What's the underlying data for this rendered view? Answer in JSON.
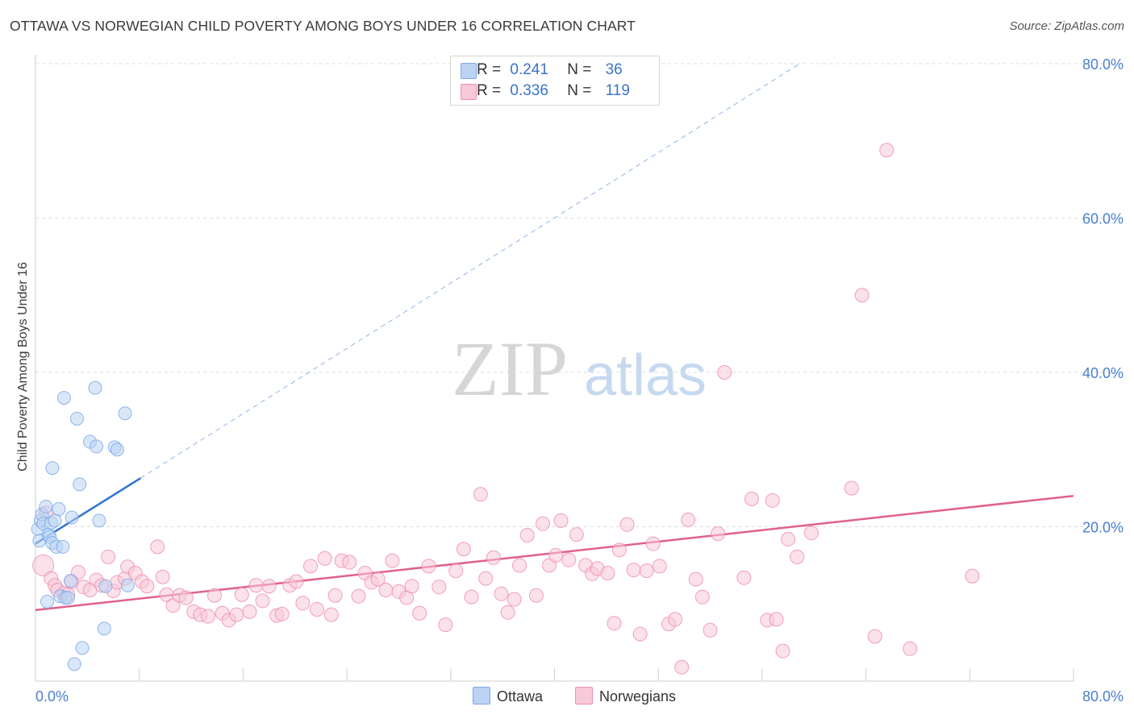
{
  "header": {
    "title": "OTTAWA VS NORWEGIAN CHILD POVERTY AMONG BOYS UNDER 16 CORRELATION CHART",
    "source": "Source: ZipAtlas.com"
  },
  "watermark": {
    "zip": "ZIP",
    "atlas": "atlas"
  },
  "legend": {
    "r_label": "R =",
    "n_label": "N =",
    "items": [
      {
        "name": "Ottawa",
        "r": "0.241",
        "n": "36",
        "color": "#7aaaea",
        "fill": "#bcd3f3"
      },
      {
        "name": "Norwegians",
        "r": "0.336",
        "n": "119",
        "color": "#ef8fb0",
        "fill": "#f8c9d8"
      }
    ]
  },
  "colors": {
    "blue_line": "#2f74d0",
    "pink_line": "#e0608e",
    "axis_text": "#4a7fd0",
    "grid": "#dddddd"
  },
  "chart_data": {
    "type": "scatter",
    "title": "OTTAWA VS NORWEGIAN CHILD POVERTY AMONG BOYS UNDER 16 CORRELATION CHART",
    "xlabel": "",
    "ylabel": "Child Poverty Among Boys Under 16",
    "xlim": [
      0,
      80
    ],
    "ylim": [
      0,
      80
    ],
    "x_tick_labels": [
      "0.0%",
      "80.0%"
    ],
    "y_ticks": [
      20,
      40,
      60,
      80
    ],
    "y_tick_labels": [
      "20.0%",
      "40.0%",
      "60.0%",
      "80.0%"
    ],
    "series": [
      {
        "name": "Ottawa",
        "points": [
          [
            0.2,
            19.7
          ],
          [
            0.3,
            18.2
          ],
          [
            0.4,
            20.8
          ],
          [
            0.5,
            21.6
          ],
          [
            0.6,
            20.4
          ],
          [
            0.8,
            22.6
          ],
          [
            0.9,
            10.3
          ],
          [
            1.0,
            19.0
          ],
          [
            1.1,
            18.7
          ],
          [
            1.2,
            20.5
          ],
          [
            1.3,
            27.6
          ],
          [
            1.3,
            17.9
          ],
          [
            1.5,
            20.8
          ],
          [
            1.6,
            17.4
          ],
          [
            1.8,
            22.3
          ],
          [
            1.9,
            11.0
          ],
          [
            2.1,
            17.4
          ],
          [
            2.2,
            36.7
          ],
          [
            2.3,
            10.8
          ],
          [
            2.5,
            10.8
          ],
          [
            2.7,
            13.0
          ],
          [
            2.8,
            21.2
          ],
          [
            3.0,
            2.2
          ],
          [
            3.2,
            34.0
          ],
          [
            3.4,
            25.5
          ],
          [
            3.6,
            4.3
          ],
          [
            4.2,
            31.0
          ],
          [
            4.6,
            38.0
          ],
          [
            4.7,
            30.4
          ],
          [
            4.9,
            20.8
          ],
          [
            5.3,
            6.8
          ],
          [
            5.4,
            12.3
          ],
          [
            6.1,
            30.3
          ],
          [
            6.3,
            30.0
          ],
          [
            6.9,
            34.7
          ],
          [
            7.1,
            12.4
          ]
        ],
        "trend": {
          "x": [
            0,
            8.1
          ],
          "y": [
            17.8,
            26.3
          ]
        },
        "trend_extension": {
          "x": [
            8.1,
            58.9
          ],
          "y": [
            26.3,
            80.0
          ]
        }
      },
      {
        "name": "Norwegians",
        "points": [
          [
            0.6,
            15.0
          ],
          [
            0.8,
            21.8
          ],
          [
            1.2,
            13.3
          ],
          [
            1.5,
            12.4
          ],
          [
            1.7,
            11.8
          ],
          [
            2.2,
            11.4
          ],
          [
            2.5,
            11.2
          ],
          [
            2.8,
            12.9
          ],
          [
            3.3,
            14.1
          ],
          [
            3.7,
            12.2
          ],
          [
            4.2,
            11.8
          ],
          [
            4.7,
            13.1
          ],
          [
            5.1,
            12.4
          ],
          [
            5.6,
            16.1
          ],
          [
            6.0,
            11.7
          ],
          [
            6.3,
            12.8
          ],
          [
            6.9,
            13.3
          ],
          [
            7.1,
            14.8
          ],
          [
            7.7,
            14.0
          ],
          [
            8.2,
            12.9
          ],
          [
            8.6,
            12.3
          ],
          [
            9.4,
            17.4
          ],
          [
            9.8,
            13.5
          ],
          [
            10.1,
            11.2
          ],
          [
            10.6,
            9.8
          ],
          [
            11.1,
            11.1
          ],
          [
            11.6,
            10.8
          ],
          [
            12.2,
            9.0
          ],
          [
            12.7,
            8.6
          ],
          [
            13.3,
            8.4
          ],
          [
            13.8,
            11.1
          ],
          [
            14.4,
            8.8
          ],
          [
            14.9,
            7.9
          ],
          [
            15.5,
            8.6
          ],
          [
            15.9,
            11.2
          ],
          [
            16.5,
            9.0
          ],
          [
            17.0,
            12.4
          ],
          [
            17.5,
            10.4
          ],
          [
            18.0,
            12.3
          ],
          [
            18.6,
            8.5
          ],
          [
            19.0,
            8.7
          ],
          [
            19.6,
            12.4
          ],
          [
            20.1,
            12.9
          ],
          [
            20.6,
            10.1
          ],
          [
            21.2,
            14.9
          ],
          [
            21.7,
            9.3
          ],
          [
            22.3,
            15.9
          ],
          [
            22.8,
            8.6
          ],
          [
            23.1,
            11.1
          ],
          [
            23.6,
            15.6
          ],
          [
            24.2,
            15.4
          ],
          [
            24.9,
            11.0
          ],
          [
            25.4,
            14.0
          ],
          [
            25.9,
            12.8
          ],
          [
            26.4,
            13.2
          ],
          [
            27.0,
            11.8
          ],
          [
            27.5,
            15.6
          ],
          [
            28.0,
            11.6
          ],
          [
            28.6,
            10.8
          ],
          [
            29.0,
            12.3
          ],
          [
            29.6,
            8.8
          ],
          [
            30.3,
            14.9
          ],
          [
            31.1,
            12.2
          ],
          [
            31.6,
            7.3
          ],
          [
            32.4,
            14.3
          ],
          [
            33.0,
            17.1
          ],
          [
            33.6,
            10.9
          ],
          [
            34.3,
            24.2
          ],
          [
            34.7,
            13.3
          ],
          [
            35.3,
            16.0
          ],
          [
            35.9,
            11.3
          ],
          [
            36.4,
            8.9
          ],
          [
            36.9,
            10.6
          ],
          [
            37.3,
            15.0
          ],
          [
            37.9,
            18.9
          ],
          [
            38.6,
            11.1
          ],
          [
            39.1,
            20.4
          ],
          [
            39.6,
            15.0
          ],
          [
            40.1,
            16.3
          ],
          [
            40.5,
            20.8
          ],
          [
            41.1,
            15.7
          ],
          [
            41.7,
            19.0
          ],
          [
            42.4,
            15.0
          ],
          [
            42.9,
            13.9
          ],
          [
            43.3,
            14.6
          ],
          [
            44.1,
            14.0
          ],
          [
            44.6,
            7.5
          ],
          [
            45.0,
            17.0
          ],
          [
            45.6,
            20.3
          ],
          [
            46.1,
            14.4
          ],
          [
            46.6,
            6.1
          ],
          [
            47.1,
            14.3
          ],
          [
            47.6,
            17.8
          ],
          [
            48.1,
            14.9
          ],
          [
            48.8,
            7.4
          ],
          [
            49.3,
            8.0
          ],
          [
            49.8,
            1.8
          ],
          [
            50.3,
            20.9
          ],
          [
            50.9,
            13.2
          ],
          [
            51.4,
            10.9
          ],
          [
            52.0,
            6.6
          ],
          [
            52.6,
            19.1
          ],
          [
            53.1,
            40.0
          ],
          [
            54.6,
            13.4
          ],
          [
            55.2,
            23.6
          ],
          [
            56.4,
            7.9
          ],
          [
            56.8,
            23.4
          ],
          [
            57.1,
            8.0
          ],
          [
            57.6,
            3.9
          ],
          [
            58.0,
            18.4
          ],
          [
            58.7,
            16.1
          ],
          [
            59.8,
            19.2
          ],
          [
            62.9,
            25.0
          ],
          [
            63.7,
            50.0
          ],
          [
            64.7,
            5.8
          ],
          [
            65.6,
            68.8
          ],
          [
            67.4,
            4.2
          ],
          [
            72.2,
            13.6
          ]
        ],
        "trend": {
          "x": [
            0,
            80
          ],
          "y": [
            9.2,
            24.0
          ]
        }
      }
    ]
  }
}
